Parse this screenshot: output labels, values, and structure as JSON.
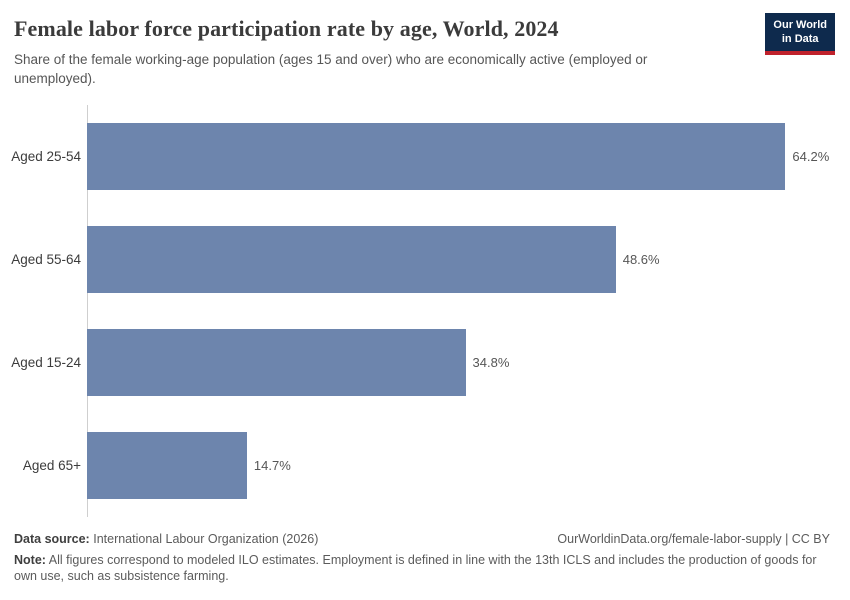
{
  "header": {
    "title": "Female labor force participation rate by age, World, 2024",
    "subtitle": "Share of the female working-age population (ages 15 and over) who are economically active (employed or unemployed).",
    "logo": {
      "line1": "Our World",
      "line2": "in Data",
      "bg_color": "#0e2a4d",
      "accent_color": "#c0222c"
    }
  },
  "chart_data": {
    "type": "bar",
    "orientation": "horizontal",
    "title": "Female labor force participation rate by age, World, 2024",
    "categories": [
      "Aged 25-54",
      "Aged 55-64",
      "Aged 15-24",
      "Aged 65+"
    ],
    "values": [
      64.2,
      48.6,
      34.8,
      14.7
    ],
    "value_labels": [
      "64.2%",
      "48.6%",
      "34.8%",
      "14.7%"
    ],
    "unit": "%",
    "xlabel": "",
    "ylabel": "",
    "xlim": [
      0,
      68.3
    ],
    "grid": false,
    "legend": false,
    "bar_color": "#6d85ad"
  },
  "footer": {
    "data_source_label": "Data source:",
    "data_source": "International Labour Organization (2026)",
    "attribution": "OurWorldinData.org/female-labor-supply | CC BY",
    "note_label": "Note:",
    "note": "All figures correspond to modeled ILO estimates. Employment is defined in line with the 13th ICLS and includes the production of goods for own use, such as subsistence farming."
  }
}
